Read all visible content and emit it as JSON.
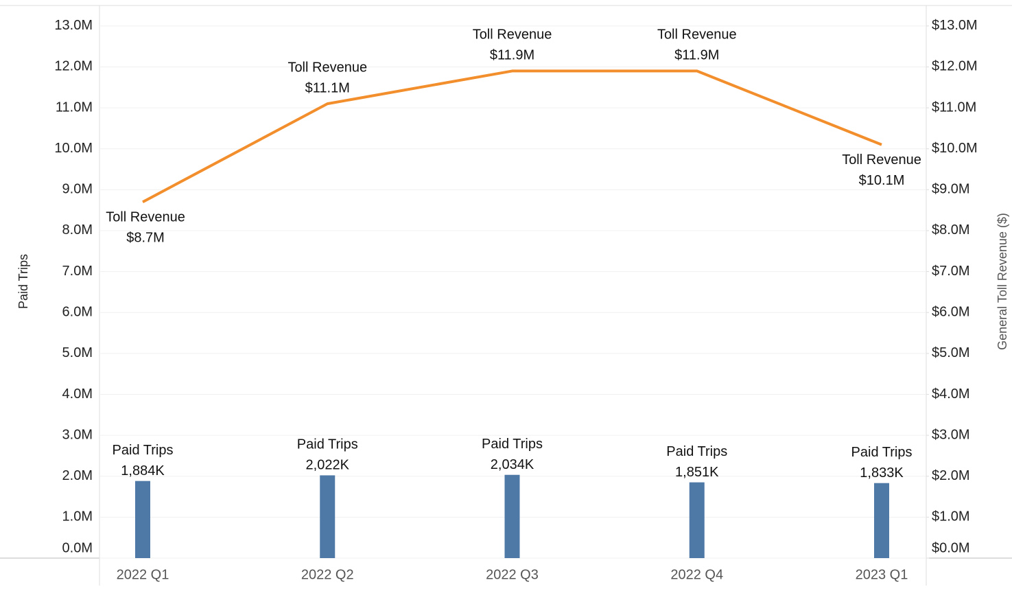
{
  "chart_data": {
    "type": "bar+line",
    "categories": [
      "2022 Q1",
      "2022 Q2",
      "2022 Q3",
      "2022 Q4",
      "2023 Q1"
    ],
    "y_label": "Paid Trips",
    "y2_label": "General Toll Revenue ($)",
    "series": [
      {
        "name": "Paid Trips",
        "type": "bar",
        "color": "#4e79a7",
        "axis": "y",
        "values": [
          1884000,
          2022000,
          2034000,
          1851000,
          1833000
        ],
        "value_labels": [
          "1,884K",
          "2,022K",
          "2,034K",
          "1,851K",
          "1,833K"
        ]
      },
      {
        "name": "Toll Revenue",
        "type": "line",
        "color": "#f28e2b",
        "axis": "y2",
        "values": [
          8700000,
          11100000,
          11900000,
          11900000,
          10100000
        ],
        "value_labels": [
          "$8.7M",
          "$11.1M",
          "$11.9M",
          "$11.9M",
          "$10.1M"
        ]
      }
    ],
    "ylim": [
      0,
      13500000
    ],
    "y2lim": [
      0,
      13500000
    ],
    "yticks": [
      {
        "value": 0,
        "label": "0.0M"
      },
      {
        "value": 1000000,
        "label": "1.0M"
      },
      {
        "value": 2000000,
        "label": "2.0M"
      },
      {
        "value": 3000000,
        "label": "3.0M"
      },
      {
        "value": 4000000,
        "label": "4.0M"
      },
      {
        "value": 5000000,
        "label": "5.0M"
      },
      {
        "value": 6000000,
        "label": "6.0M"
      },
      {
        "value": 7000000,
        "label": "7.0M"
      },
      {
        "value": 8000000,
        "label": "8.0M"
      },
      {
        "value": 9000000,
        "label": "9.0M"
      },
      {
        "value": 10000000,
        "label": "10.0M"
      },
      {
        "value": 11000000,
        "label": "11.0M"
      },
      {
        "value": 12000000,
        "label": "12.0M"
      },
      {
        "value": 13000000,
        "label": "13.0M"
      }
    ],
    "y2ticks": [
      {
        "value": 0,
        "label": "$0.0M"
      },
      {
        "value": 1000000,
        "label": "$1.0M"
      },
      {
        "value": 2000000,
        "label": "$2.0M"
      },
      {
        "value": 3000000,
        "label": "$3.0M"
      },
      {
        "value": 4000000,
        "label": "$4.0M"
      },
      {
        "value": 5000000,
        "label": "$5.0M"
      },
      {
        "value": 6000000,
        "label": "$6.0M"
      },
      {
        "value": 7000000,
        "label": "$7.0M"
      },
      {
        "value": 8000000,
        "label": "$8.0M"
      },
      {
        "value": 9000000,
        "label": "$9.0M"
      },
      {
        "value": 10000000,
        "label": "$10.0M"
      },
      {
        "value": 11000000,
        "label": "$11.0M"
      },
      {
        "value": 12000000,
        "label": "$12.0M"
      },
      {
        "value": 13000000,
        "label": "$13.0M"
      }
    ],
    "grid": true
  }
}
